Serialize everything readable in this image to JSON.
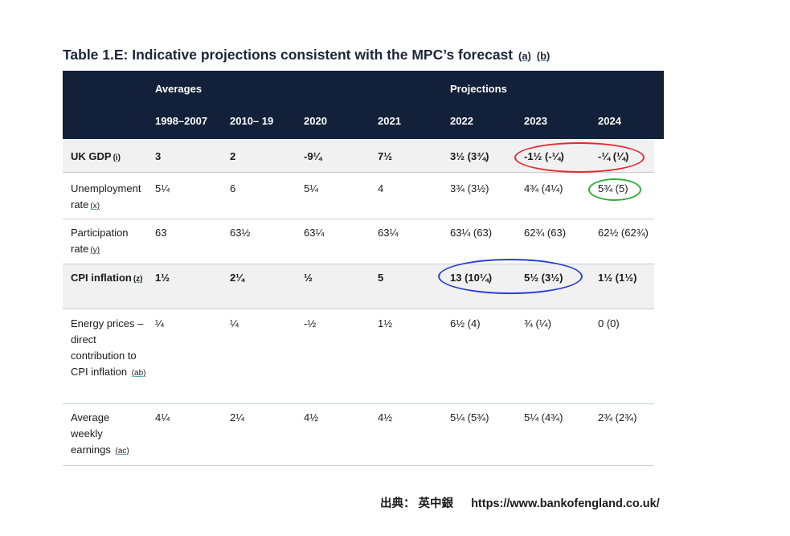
{
  "title": {
    "text": "Table 1.E: Indicative projections consistent with the MPC’s forecast",
    "refs": [
      "(a)",
      "(b)"
    ]
  },
  "header": {
    "group_averages": "Averages",
    "group_projections": "Projections",
    "years": [
      "1998–2007",
      "2010– 19",
      "2020",
      "2021",
      "2022",
      "2023",
      "2024"
    ]
  },
  "rows": [
    {
      "label": "UK GDP",
      "ref": "(i)",
      "bold": true,
      "values": [
        "3",
        "2",
        "-9¼",
        "7½",
        "3½ (3¾)",
        "-1½ (-¼)",
        "-¼ (¼)"
      ]
    },
    {
      "label": "Unemployment rate",
      "ref": "(x)",
      "bold": false,
      "values": [
        "5¼",
        "6",
        "5¼",
        "4",
        "3¾ (3½)",
        "4¾ (4¼)",
        "5¾ (5)"
      ]
    },
    {
      "label": "Participation rate",
      "ref": "(y)",
      "bold": false,
      "values": [
        "63",
        "63½",
        "63¼",
        "63¼",
        "63¼ (63)",
        "62¾ (63)",
        "62½ (62¾)"
      ]
    },
    {
      "label": "CPI inflation",
      "ref": "(z)",
      "bold": true,
      "values": [
        "1½",
        "2¼",
        "½",
        "5",
        "13 (10¼)",
        "5½ (3½)",
        "1½ (1½)"
      ]
    },
    {
      "label": "Energy prices – direct contribution to CPI inflation",
      "ref": "(ab)",
      "bold": false,
      "values": [
        "¼",
        "¼",
        "-½",
        "1½",
        "6½ (4)",
        "¾ (¼)",
        "0 (0)"
      ]
    },
    {
      "label": "Average weekly earnings",
      "ref": "(ac)",
      "bold": false,
      "values": [
        "4¼",
        "2¼",
        "4½",
        "4½",
        "5¼ (5¾)",
        "5¼ (4¾)",
        "2¾ (2¾)"
      ]
    }
  ],
  "source": {
    "label": "出典：  英中銀",
    "url": "https://www.bankofengland.co.uk/"
  },
  "colors": {
    "header_bg": "#12203a",
    "oval_red": "#e8262d",
    "oval_green": "#2fae3a",
    "oval_blue": "#2a3fd6"
  }
}
